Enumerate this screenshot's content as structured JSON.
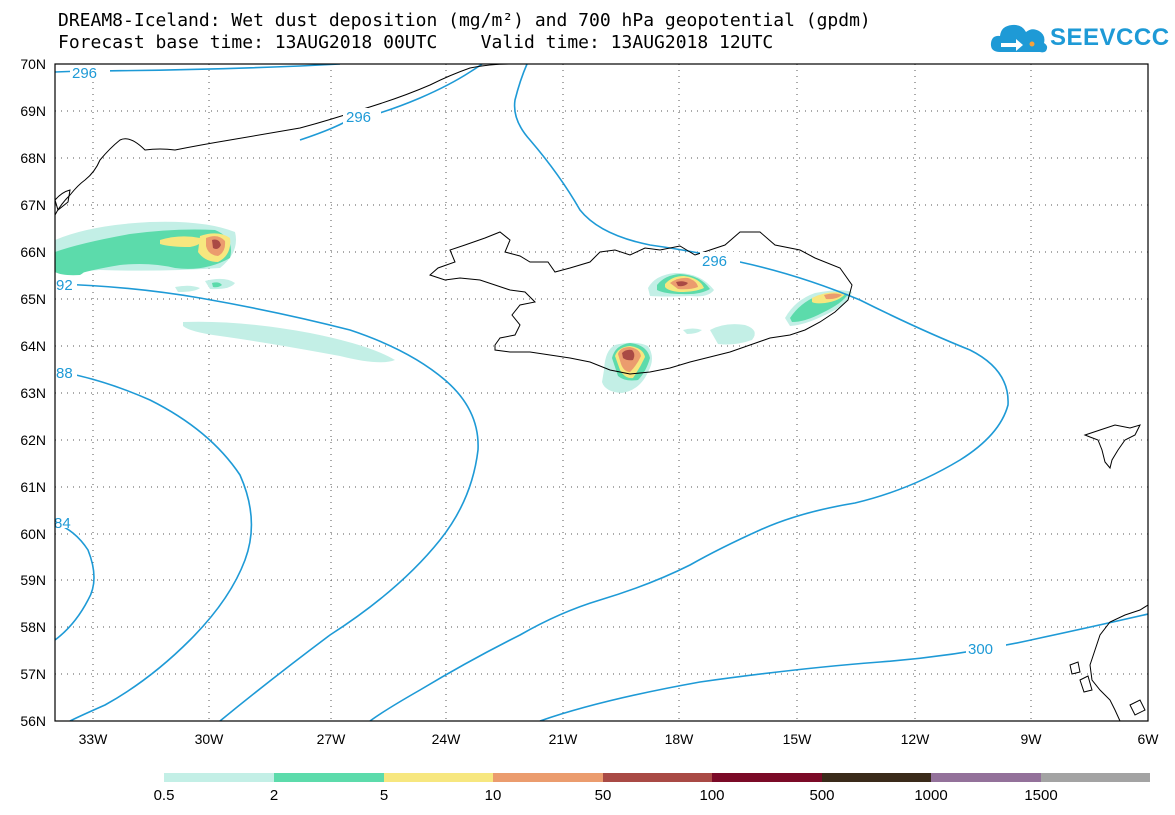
{
  "title": {
    "line1": "DREAM8-Iceland: Wet dust deposition (mg/m²) and 700 hPa geopotential (gpdm)",
    "line2": "Forecast base time: 13AUG2018 00UTC    Valid time: 13AUG2018 12UTC"
  },
  "logo": {
    "text": "SEEVCCC",
    "color": "#1e9ad6",
    "icon": "cloud-icon"
  },
  "map": {
    "lon_min": -34.5,
    "lon_max": -6,
    "lat_min": 56,
    "lat_max": 70,
    "lat_ticks": [
      {
        "lat": 70,
        "label": "70N"
      },
      {
        "lat": 69,
        "label": "69N"
      },
      {
        "lat": 68,
        "label": "68N"
      },
      {
        "lat": 67,
        "label": "67N"
      },
      {
        "lat": 66,
        "label": "66N"
      },
      {
        "lat": 65,
        "label": "65N"
      },
      {
        "lat": 64,
        "label": "64N"
      },
      {
        "lat": 63,
        "label": "63N"
      },
      {
        "lat": 62,
        "label": "62N"
      },
      {
        "lat": 61,
        "label": "61N"
      },
      {
        "lat": 60,
        "label": "60N"
      },
      {
        "lat": 59,
        "label": "59N"
      },
      {
        "lat": 58,
        "label": "58N"
      },
      {
        "lat": 57,
        "label": "57N"
      },
      {
        "lat": 56,
        "label": "56N"
      }
    ],
    "lon_ticks": [
      {
        "lon": -33,
        "label": "33W"
      },
      {
        "lon": -30,
        "label": "30W"
      },
      {
        "lon": -27,
        "label": "27W"
      },
      {
        "lon": -24,
        "label": "24W"
      },
      {
        "lon": -21,
        "label": "21W"
      },
      {
        "lon": -18,
        "label": "18W"
      },
      {
        "lon": -15,
        "label": "15W"
      },
      {
        "lon": -12,
        "label": "12W"
      },
      {
        "lon": -9,
        "label": "9W"
      },
      {
        "lon": -6,
        "label": "6W"
      }
    ],
    "contour_color": "#1e9ad6",
    "contours": [
      {
        "label": "296",
        "label_lon": -33.4,
        "label_lat": 69.82
      },
      {
        "label": "296",
        "label_lon": -26.3,
        "label_lat": 69.0
      },
      {
        "label": "296",
        "label_lon": -16.9,
        "label_lat": 65.8
      },
      {
        "label": "92",
        "label_lon": -34.3,
        "label_lat": 65.35
      },
      {
        "label": "88",
        "label_lon": -34.3,
        "label_lat": 63.45
      },
      {
        "label": "84",
        "label_lon": -34.4,
        "label_lat": 60.25
      },
      {
        "label": "300",
        "label_lon": -11.3,
        "label_lat": 57.55
      }
    ]
  },
  "legend": {
    "colors": [
      "#c3efe6",
      "#5cdbab",
      "#f7e77f",
      "#eb9c6e",
      "#a94a45",
      "#7b0a27",
      "#3a2a1a",
      "#93719a",
      "#a3a3a3"
    ],
    "labels": [
      "0.5",
      "2",
      "5",
      "10",
      "50",
      "100",
      "500",
      "1000",
      "1500"
    ]
  }
}
